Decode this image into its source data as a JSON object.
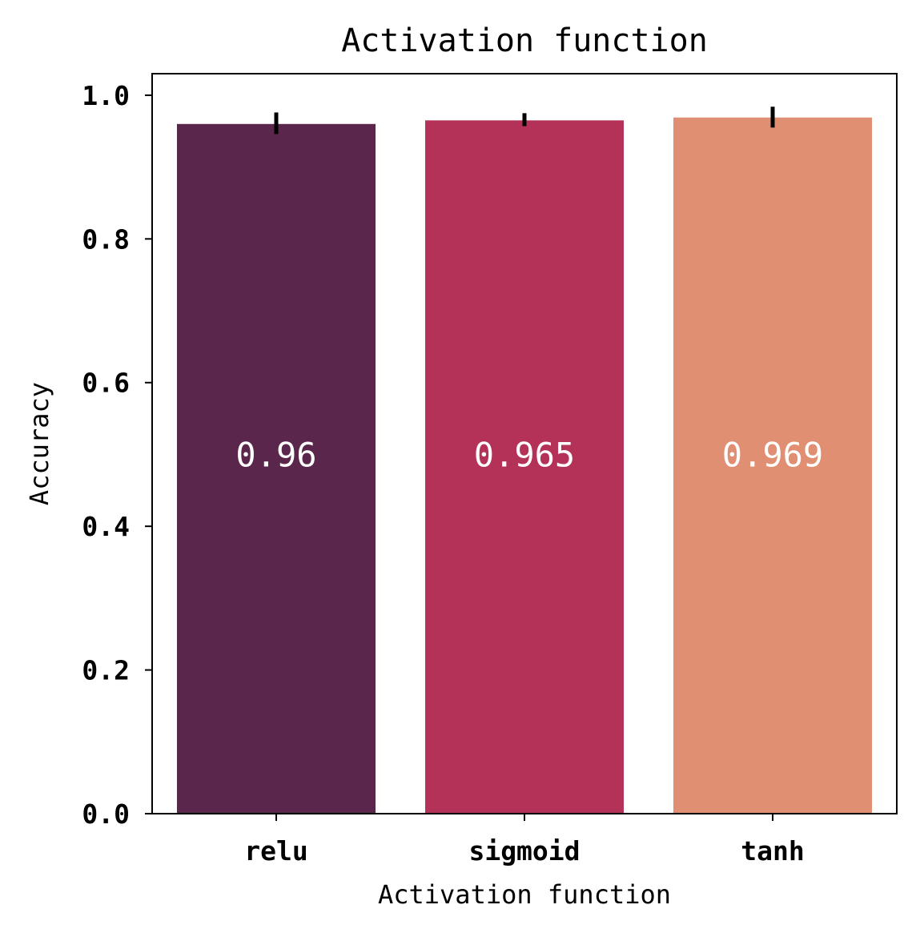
{
  "chart_data": {
    "type": "bar",
    "title": "Activation function",
    "xlabel": "Activation function",
    "ylabel": "Accuracy",
    "categories": [
      "relu",
      "sigmoid",
      "tanh"
    ],
    "values": [
      0.96,
      0.965,
      0.969
    ],
    "error_bars": [
      {
        "low": 0.946,
        "high": 0.976
      },
      {
        "low": 0.957,
        "high": 0.975
      },
      {
        "low": 0.955,
        "high": 0.984
      }
    ],
    "data_labels": [
      "0.96",
      "0.965",
      "0.969"
    ],
    "ylim": [
      0,
      1.03
    ],
    "yticks": [
      0.0,
      0.2,
      0.4,
      0.6,
      0.8,
      1.0
    ],
    "ytick_labels": [
      "0.0",
      "0.2",
      "0.4",
      "0.6",
      "0.8",
      "1.0"
    ],
    "colors": [
      "#5b264c",
      "#b43157",
      "#e08f72"
    ],
    "error_color": "#000000",
    "data_label_color": "#ffffff",
    "grid": false,
    "legend": "none"
  }
}
